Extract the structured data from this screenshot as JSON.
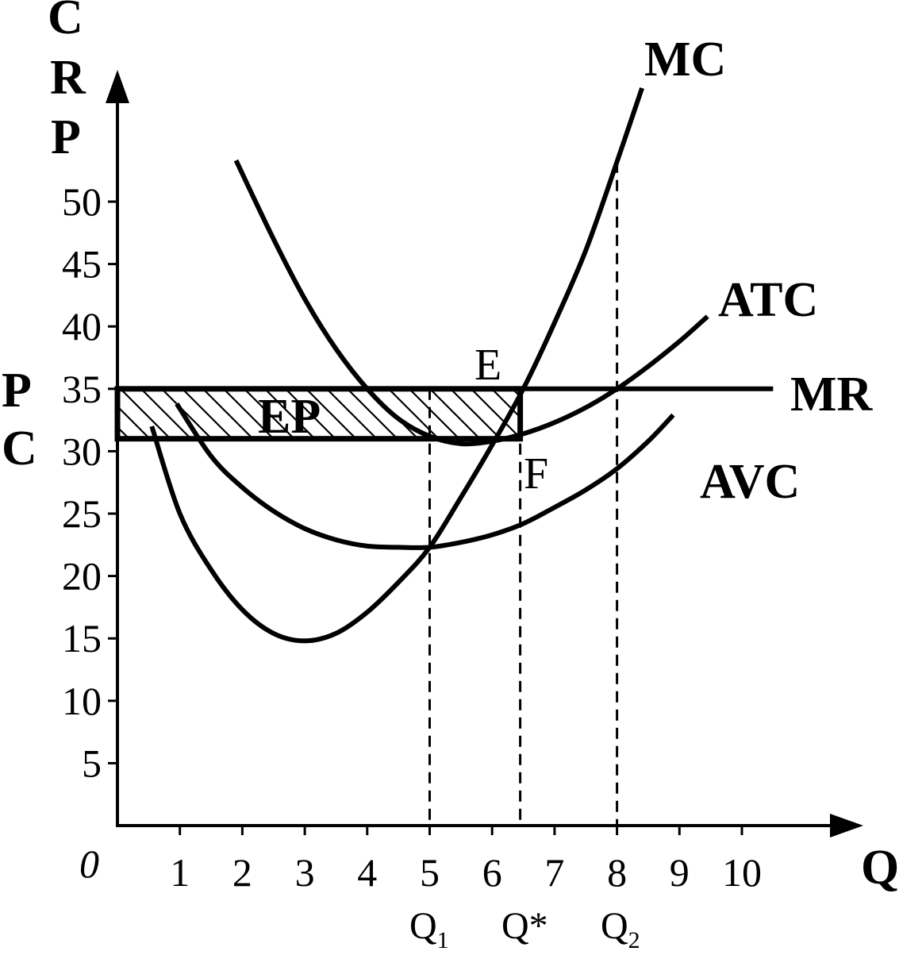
{
  "chart_data": {
    "type": "line",
    "axes": {
      "y_title_letters": [
        "C",
        "R",
        "P"
      ],
      "x_title": "Q",
      "origin_label": "0",
      "x_ticks": [
        "1",
        "2",
        "3",
        "4",
        "5",
        "6",
        "7",
        "8",
        "9",
        "10"
      ],
      "y_ticks": [
        "5",
        "10",
        "15",
        "20",
        "25",
        "30",
        "35",
        "40",
        "45",
        "50"
      ],
      "xlim": [
        0,
        11.5
      ],
      "ylim": [
        0,
        58
      ],
      "grid": false
    },
    "series": [
      {
        "name": "MC",
        "points": [
          [
            0.55,
            32
          ],
          [
            1,
            25
          ],
          [
            1.5,
            20.5
          ],
          [
            2,
            17.3
          ],
          [
            2.5,
            15.4
          ],
          [
            3,
            14.8
          ],
          [
            3.5,
            15.4
          ],
          [
            4,
            17.1
          ],
          [
            4.5,
            19.5
          ],
          [
            5,
            22.3
          ],
          [
            5.5,
            26.3
          ],
          [
            6,
            30.5
          ],
          [
            6.5,
            35
          ],
          [
            7,
            40.3
          ],
          [
            7.5,
            46.1
          ],
          [
            8,
            53.2
          ],
          [
            8.4,
            59.1
          ]
        ]
      },
      {
        "name": "ATC",
        "points": [
          [
            1.9,
            53.3
          ],
          [
            2.5,
            47
          ],
          [
            3,
            42.2
          ],
          [
            3.5,
            38.2
          ],
          [
            4,
            35
          ],
          [
            4.5,
            32.6
          ],
          [
            5,
            31.2
          ],
          [
            5.5,
            30.6
          ],
          [
            6,
            30.8
          ],
          [
            6.5,
            31.4
          ],
          [
            7,
            32.3
          ],
          [
            7.5,
            33.5
          ],
          [
            8,
            35
          ],
          [
            8.5,
            36.8
          ],
          [
            9,
            38.8
          ],
          [
            9.45,
            40.8
          ]
        ]
      },
      {
        "name": "AVC",
        "points": [
          [
            0.95,
            33.8
          ],
          [
            1.5,
            29.6
          ],
          [
            2,
            27.1
          ],
          [
            2.5,
            25.2
          ],
          [
            3,
            23.8
          ],
          [
            3.5,
            22.9
          ],
          [
            4,
            22.4
          ],
          [
            4.5,
            22.3
          ],
          [
            5,
            22.3
          ],
          [
            5.5,
            22.7
          ],
          [
            6,
            23.3
          ],
          [
            6.5,
            24.2
          ],
          [
            7,
            25.5
          ],
          [
            7.5,
            26.9
          ],
          [
            8,
            28.6
          ],
          [
            8.5,
            30.8
          ],
          [
            8.9,
            32.9
          ]
        ]
      },
      {
        "name": "MR",
        "points": [
          [
            0,
            35
          ],
          [
            10.5,
            35
          ]
        ]
      }
    ],
    "shaded_region": {
      "label": "EP",
      "x_range": [
        0,
        6.45
      ],
      "y_range": [
        31,
        35
      ],
      "pattern": "diagonal-hatch"
    },
    "points_of_interest": [
      {
        "label": "E",
        "x": 6.45,
        "y": 35
      },
      {
        "label": "F",
        "x": 6.45,
        "y": 31
      }
    ],
    "reference_lines": [
      {
        "label": "Q1",
        "x": 5,
        "y_top": 35
      },
      {
        "label": "Q*",
        "x": 6.45,
        "y_top": 35
      },
      {
        "label": "Q2",
        "x": 8,
        "y_top": 53.2
      }
    ],
    "side_labels": {
      "price_letter": "P",
      "cost_letter": "C"
    },
    "curve_labels": [
      "MC",
      "ATC",
      "AVC",
      "MR"
    ],
    "q_labels": [
      {
        "main": "Q",
        "sub": "1"
      },
      {
        "main": "Q*",
        "sub": ""
      },
      {
        "main": "Q",
        "sub": "2"
      }
    ]
  }
}
